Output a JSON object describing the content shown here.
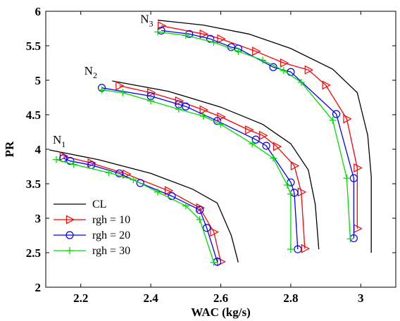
{
  "chart_data": {
    "type": "line",
    "xlabel": "WAC (kg/s)",
    "ylabel": "PR",
    "xlim": [
      2.1,
      3.1
    ],
    "ylim": [
      2,
      6
    ],
    "xticks": [
      2.2,
      2.4,
      2.6,
      2.8,
      3
    ],
    "xtick_labels": [
      "2.2",
      "2.4",
      "2.6",
      "2.8",
      "3"
    ],
    "yticks": [
      2,
      2.5,
      3,
      3.5,
      4,
      4.5,
      5,
      5.5,
      6
    ],
    "ytick_labels": [
      "2",
      "2.5",
      "3",
      "3.5",
      "4",
      "4.5",
      "5",
      "5.5",
      "6"
    ],
    "grid": false,
    "legend_position": "bottom-left",
    "annotations": [
      {
        "base": "N",
        "sub": "1",
        "x": 2.12,
        "y": 4.08
      },
      {
        "base": "N",
        "sub": "2",
        "x": 2.21,
        "y": 5.08
      },
      {
        "base": "N",
        "sub": "3",
        "x": 2.37,
        "y": 5.83
      }
    ],
    "series": [
      {
        "name": "CL",
        "color": "#000000",
        "marker": "none",
        "curves": [
          [
            [
              2.11,
              3.99
            ],
            [
              2.25,
              3.85
            ],
            [
              2.4,
              3.65
            ],
            [
              2.52,
              3.42
            ],
            [
              2.59,
              3.22
            ],
            [
              2.63,
              2.75
            ],
            [
              2.65,
              2.36
            ]
          ],
          [
            [
              2.29,
              4.99
            ],
            [
              2.45,
              4.84
            ],
            [
              2.6,
              4.61
            ],
            [
              2.72,
              4.36
            ],
            [
              2.8,
              4.08
            ],
            [
              2.85,
              3.7
            ],
            [
              2.87,
              3.2
            ],
            [
              2.88,
              2.55
            ]
          ],
          [
            [
              2.42,
              5.87
            ],
            [
              2.55,
              5.8
            ],
            [
              2.68,
              5.67
            ],
            [
              2.8,
              5.46
            ],
            [
              2.92,
              5.16
            ],
            [
              2.99,
              4.82
            ],
            [
              3.02,
              4.2
            ],
            [
              3.03,
              3.6
            ],
            [
              3.03,
              2.5
            ]
          ]
        ]
      },
      {
        "name": "rgh = 10",
        "color": "#ff0000",
        "marker": "triangle-right",
        "curves": [
          [
            [
              2.15,
              3.9
            ],
            [
              2.23,
              3.8
            ],
            [
              2.33,
              3.64
            ],
            [
              2.45,
              3.4
            ],
            [
              2.54,
              3.15
            ],
            [
              2.58,
              2.8
            ],
            [
              2.6,
              2.37
            ]
          ],
          [
            [
              2.31,
              4.92
            ],
            [
              2.4,
              4.82
            ],
            [
              2.48,
              4.7
            ],
            [
              2.55,
              4.57
            ],
            [
              2.6,
              4.47
            ],
            [
              2.68,
              4.28
            ],
            [
              2.72,
              4.2
            ],
            [
              2.76,
              4.04
            ],
            [
              2.81,
              3.76
            ],
            [
              2.83,
              3.38
            ],
            [
              2.84,
              2.56
            ]
          ],
          [
            [
              2.43,
              5.79
            ],
            [
              2.55,
              5.67
            ],
            [
              2.6,
              5.6
            ],
            [
              2.7,
              5.42
            ],
            [
              2.78,
              5.25
            ],
            [
              2.85,
              5.15
            ],
            [
              2.9,
              4.93
            ],
            [
              2.96,
              4.44
            ],
            [
              2.99,
              3.73
            ],
            [
              2.99,
              2.85
            ]
          ]
        ]
      },
      {
        "name": "rgh = 20",
        "color": "#0000ff",
        "marker": "circle",
        "curves": [
          [
            [
              2.15,
              3.87
            ],
            [
              2.17,
              3.83
            ],
            [
              2.23,
              3.77
            ],
            [
              2.31,
              3.65
            ],
            [
              2.37,
              3.51
            ],
            [
              2.46,
              3.32
            ],
            [
              2.54,
              3.12
            ],
            [
              2.56,
              2.86
            ],
            [
              2.59,
              2.37
            ]
          ],
          [
            [
              2.26,
              4.89
            ],
            [
              2.4,
              4.77
            ],
            [
              2.48,
              4.65
            ],
            [
              2.5,
              4.62
            ],
            [
              2.59,
              4.41
            ],
            [
              2.7,
              4.14
            ],
            [
              2.73,
              4.05
            ],
            [
              2.8,
              3.52
            ],
            [
              2.81,
              3.37
            ],
            [
              2.82,
              2.55
            ]
          ],
          [
            [
              2.43,
              5.72
            ],
            [
              2.51,
              5.67
            ],
            [
              2.57,
              5.6
            ],
            [
              2.63,
              5.48
            ],
            [
              2.65,
              5.46
            ],
            [
              2.75,
              5.19
            ],
            [
              2.8,
              5.12
            ],
            [
              2.93,
              4.51
            ],
            [
              2.98,
              3.58
            ],
            [
              2.98,
              2.71
            ]
          ]
        ]
      },
      {
        "name": "rgh = 30",
        "color": "#00dd00",
        "marker": "plus",
        "curves": [
          [
            [
              2.13,
              3.85
            ],
            [
              2.18,
              3.78
            ],
            [
              2.28,
              3.66
            ],
            [
              2.35,
              3.56
            ],
            [
              2.42,
              3.38
            ],
            [
              2.5,
              3.18
            ],
            [
              2.54,
              2.98
            ],
            [
              2.58,
              2.36
            ]
          ],
          [
            [
              2.26,
              4.86
            ],
            [
              2.32,
              4.82
            ],
            [
              2.4,
              4.7
            ],
            [
              2.48,
              4.58
            ],
            [
              2.55,
              4.48
            ],
            [
              2.6,
              4.36
            ],
            [
              2.69,
              4.08
            ],
            [
              2.75,
              3.87
            ],
            [
              2.79,
              3.48
            ],
            [
              2.8,
              3.35
            ],
            [
              2.8,
              2.55
            ]
          ],
          [
            [
              2.42,
              5.7
            ],
            [
              2.5,
              5.65
            ],
            [
              2.58,
              5.55
            ],
            [
              2.65,
              5.42
            ],
            [
              2.72,
              5.29
            ],
            [
              2.78,
              5.14
            ],
            [
              2.83,
              4.97
            ],
            [
              2.92,
              4.42
            ],
            [
              2.96,
              3.58
            ],
            [
              2.97,
              2.7
            ]
          ]
        ]
      }
    ]
  }
}
